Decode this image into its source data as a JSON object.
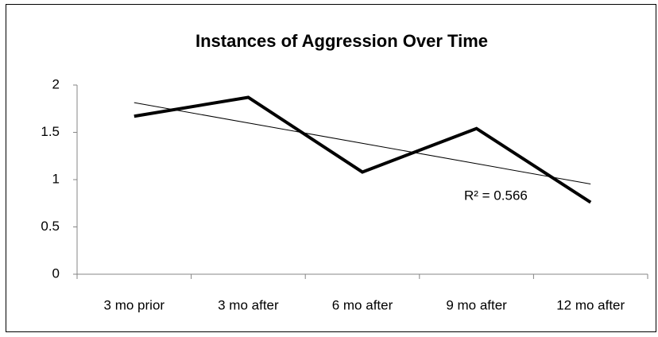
{
  "chart_data": {
    "type": "line",
    "title": "Instances of Aggression Over Time",
    "categories": [
      "3 mo prior",
      "3 mo after",
      "6 mo after",
      "9 mo after",
      "12 mo after"
    ],
    "values": [
      1.67,
      1.87,
      1.08,
      1.54,
      0.76
    ],
    "color": "#000000",
    "ylim": [
      0,
      2
    ],
    "yticks": [
      0,
      0.5,
      1,
      1.5,
      2
    ],
    "grid": false,
    "trendline": true,
    "annotation": "R² = 0.566"
  }
}
